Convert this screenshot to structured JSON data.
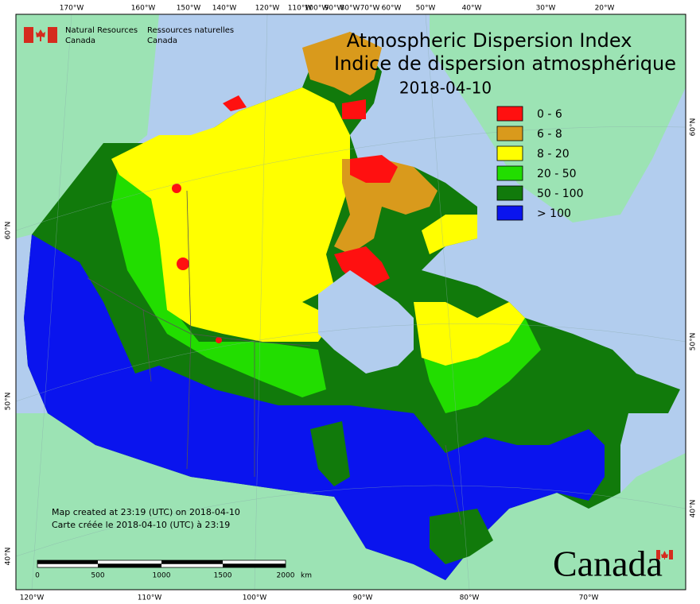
{
  "header": {
    "title_en": "Atmospheric Dispersion Index",
    "title_fr": "Indice de dispersion atmosphérique",
    "date": "2018-04-10"
  },
  "agency": {
    "en_line1": "Natural Resources",
    "en_line2": "Canada",
    "fr_line1": "Ressources naturelles",
    "fr_line2": "Canada"
  },
  "legend": [
    {
      "label": "0 - 6",
      "color": "#ff1010"
    },
    {
      "label": "6 - 8",
      "color": "#d99a1c"
    },
    {
      "label": "8 - 20",
      "color": "#ffff00"
    },
    {
      "label": "20 - 50",
      "color": "#22dd00"
    },
    {
      "label": "50 - 100",
      "color": "#117a0b"
    },
    {
      "label": "> 100",
      "color": "#0a14ee"
    }
  ],
  "notes": [
    "Map created at 23:19 (UTC) on 2018-04-10",
    "Carte créée le 2018-04-10 (UTC) à 23:19"
  ],
  "scale": {
    "labels": [
      "0",
      "500",
      "1000",
      "1500",
      "2000"
    ],
    "unit": "km"
  },
  "graticule": {
    "top": [
      "170°W",
      "160°W",
      "150°W",
      "140°W",
      "120°W",
      "110°W",
      "100°W",
      "90°W",
      "80°W",
      "70°W",
      "60°W",
      "50°W",
      "40°W",
      "30°W",
      "20°W"
    ],
    "bottom": [
      "120°W",
      "110°W",
      "100°W",
      "90°W",
      "80°W",
      "70°W"
    ],
    "left": [
      "60°N",
      "50°N",
      "40°N"
    ],
    "right": [
      "60°N",
      "50°N",
      "40°N"
    ]
  },
  "wordmark": "Canada"
}
